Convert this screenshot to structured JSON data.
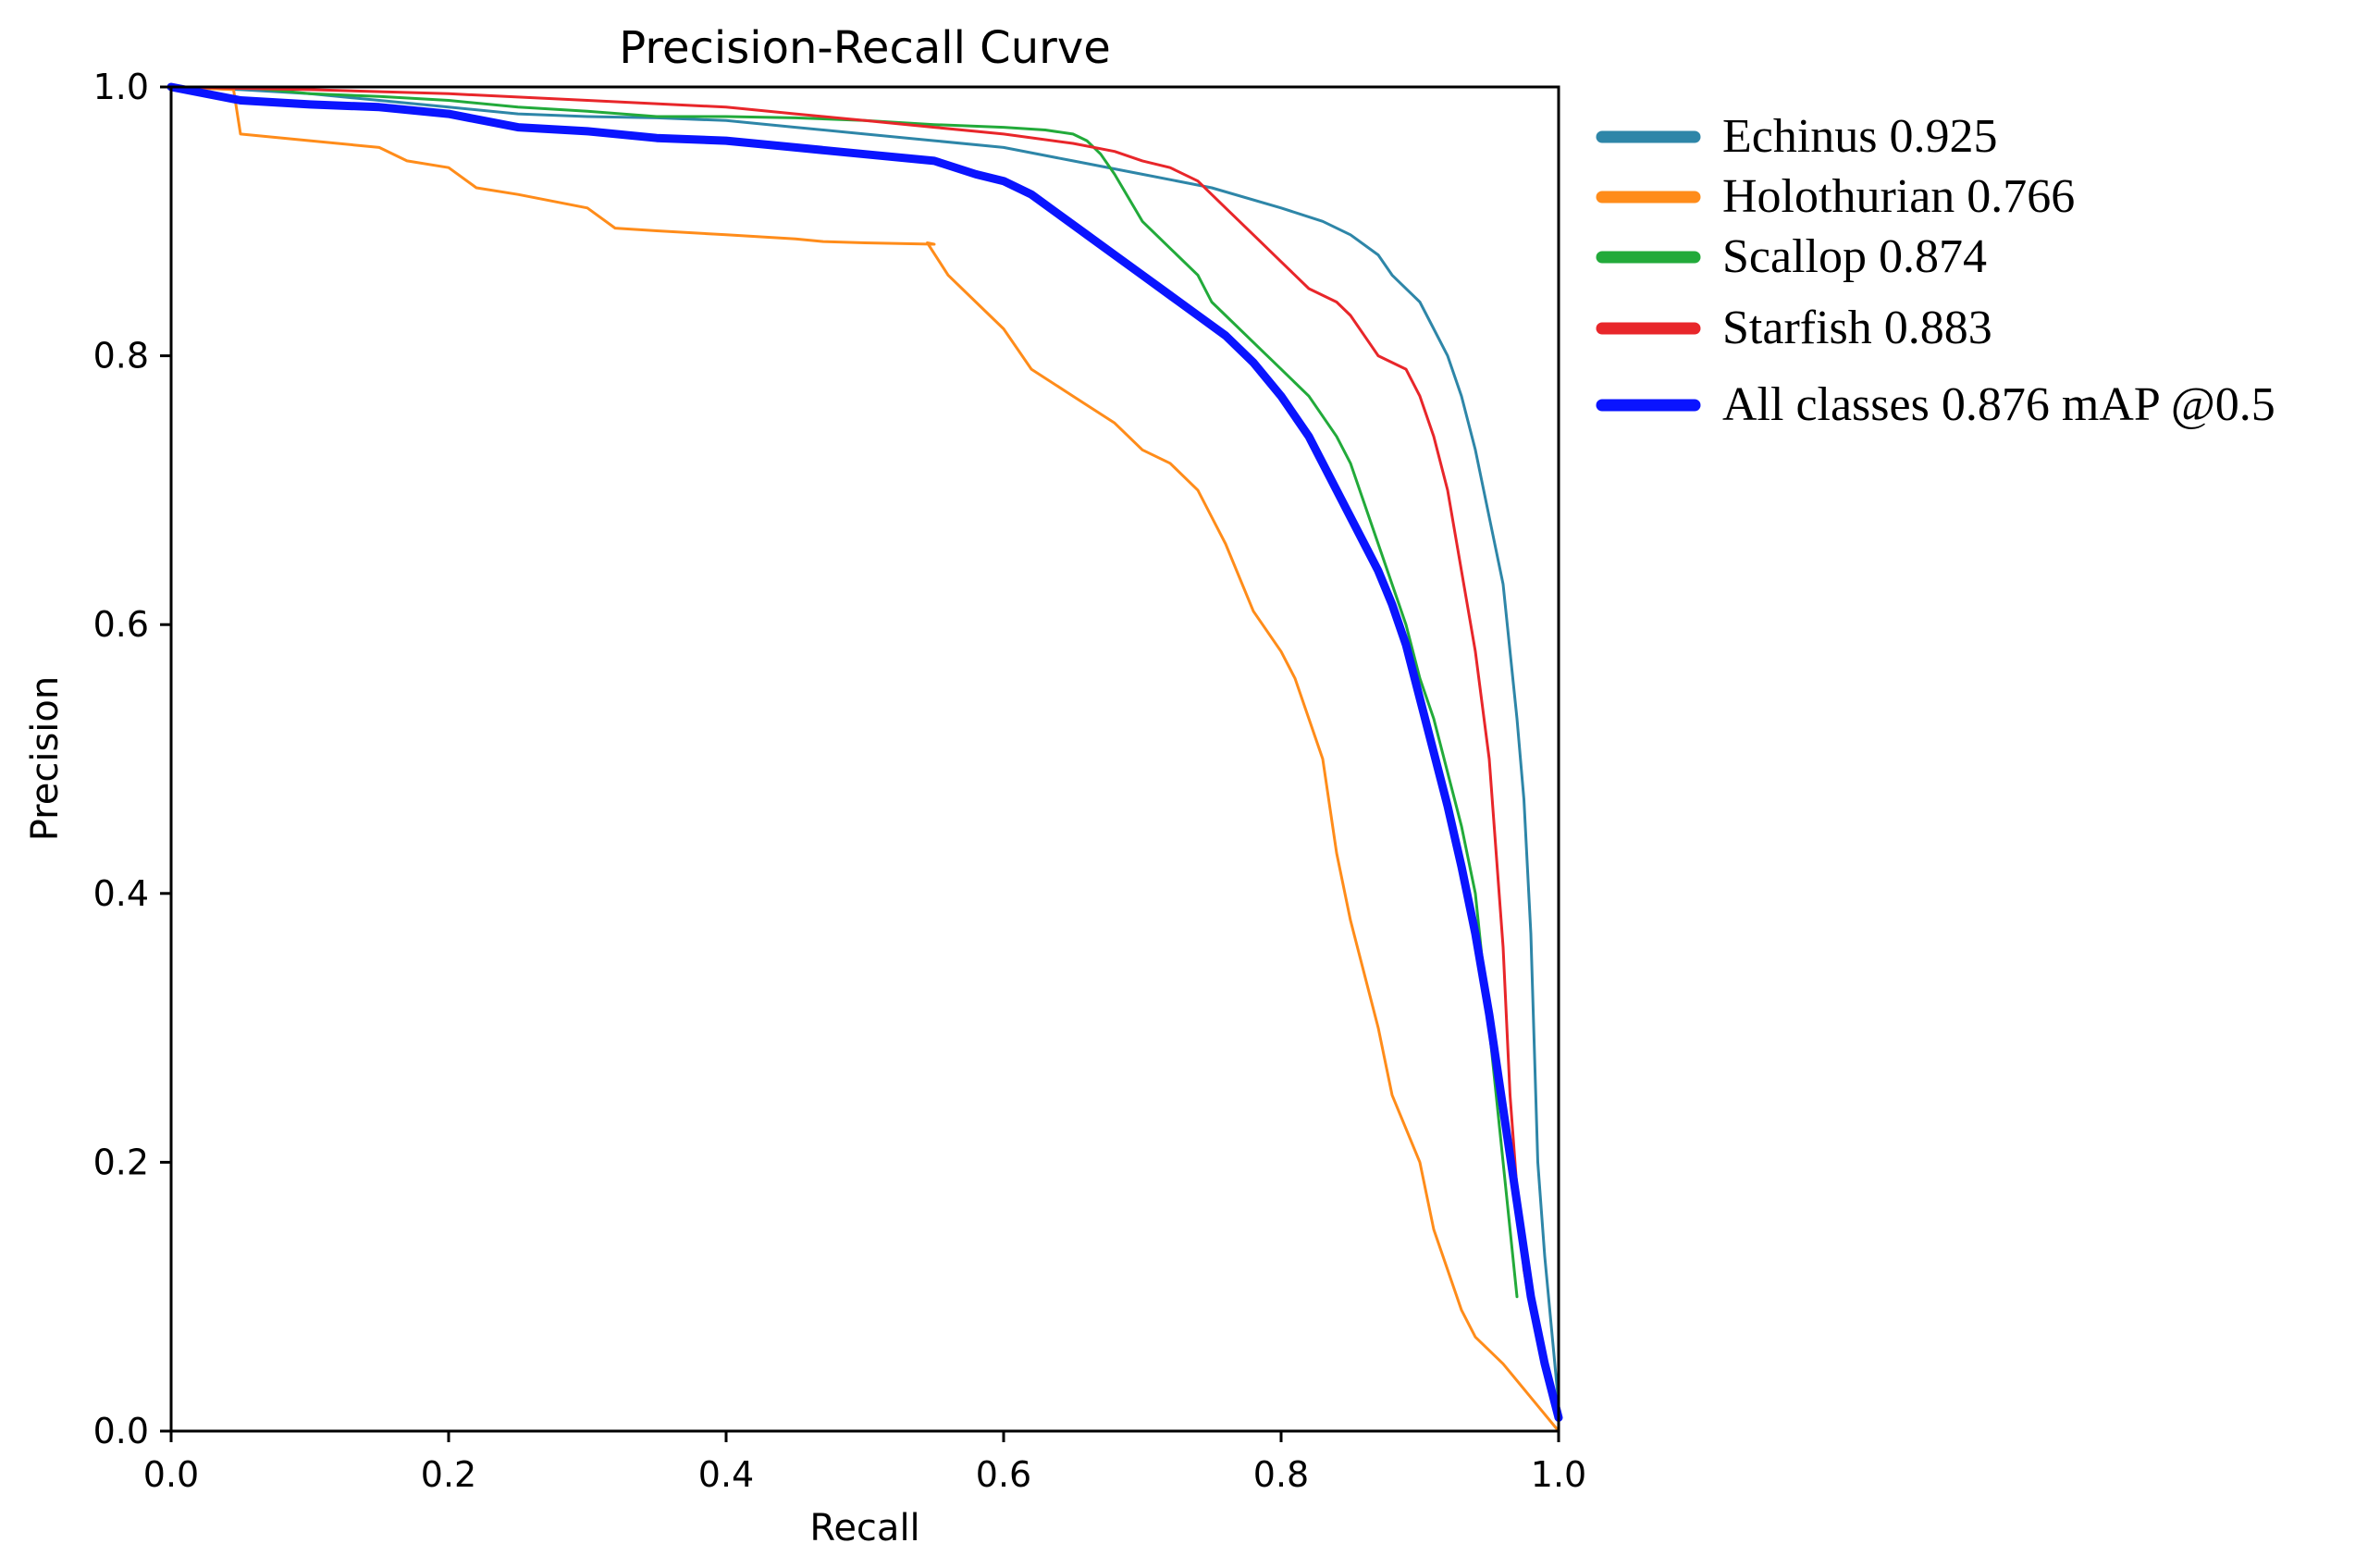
{
  "chart_data": {
    "type": "line",
    "title": "Precision-Recall Curve",
    "xlabel": "Recall",
    "ylabel": "Precision",
    "xlim": [
      0,
      1
    ],
    "ylim": [
      0,
      1
    ],
    "xticks": [
      "0.0",
      "0.2",
      "0.4",
      "0.6",
      "0.8",
      "1.0"
    ],
    "yticks": [
      "0.0",
      "0.2",
      "0.4",
      "0.6",
      "0.8",
      "1.0"
    ],
    "grid": false,
    "legend_position": "outside-right-top",
    "series": [
      {
        "name": "Echinus",
        "legend_label": "Echinus 0.925",
        "color": "#2e86a8",
        "emphasis": false,
        "x": [
          0,
          0.05,
          0.1,
          0.15,
          0.2,
          0.25,
          0.3,
          0.35,
          0.4,
          0.45,
          0.5,
          0.55,
          0.6,
          0.65,
          0.7,
          0.75,
          0.8,
          0.83,
          0.85,
          0.87,
          0.88,
          0.9,
          0.91,
          0.92,
          0.93,
          0.94,
          0.95,
          0.96,
          0.965,
          0.97,
          0.975,
          0.98,
          0.985,
          0.99,
          1.0
        ],
        "y": [
          1.0,
          0.998,
          0.995,
          0.99,
          0.985,
          0.98,
          0.978,
          0.977,
          0.975,
          0.97,
          0.965,
          0.96,
          0.955,
          0.945,
          0.935,
          0.925,
          0.91,
          0.9,
          0.89,
          0.875,
          0.86,
          0.84,
          0.82,
          0.8,
          0.77,
          0.73,
          0.68,
          0.63,
          0.58,
          0.53,
          0.47,
          0.37,
          0.2,
          0.13,
          0.02
        ]
      },
      {
        "name": "Holothurian",
        "legend_label": "Holothurian 0.766",
        "color": "#ff8c1a",
        "emphasis": false,
        "x": [
          0,
          0.045,
          0.05,
          0.1,
          0.15,
          0.17,
          0.2,
          0.22,
          0.25,
          0.3,
          0.32,
          0.35,
          0.4,
          0.45,
          0.47,
          0.5,
          0.55,
          0.545,
          0.56,
          0.58,
          0.6,
          0.62,
          0.65,
          0.68,
          0.7,
          0.72,
          0.74,
          0.75,
          0.76,
          0.78,
          0.8,
          0.81,
          0.82,
          0.83,
          0.84,
          0.85,
          0.86,
          0.87,
          0.88,
          0.9,
          0.91,
          0.92,
          0.93,
          0.94,
          0.96,
          1.0
        ],
        "y": [
          1.0,
          0.998,
          0.965,
          0.96,
          0.955,
          0.945,
          0.94,
          0.925,
          0.92,
          0.91,
          0.895,
          0.893,
          0.89,
          0.887,
          0.885,
          0.884,
          0.883,
          0.884,
          0.86,
          0.84,
          0.82,
          0.79,
          0.77,
          0.75,
          0.73,
          0.72,
          0.7,
          0.68,
          0.66,
          0.61,
          0.58,
          0.56,
          0.53,
          0.5,
          0.43,
          0.38,
          0.34,
          0.3,
          0.25,
          0.2,
          0.15,
          0.12,
          0.09,
          0.07,
          0.05,
          0.0
        ]
      },
      {
        "name": "Scallop",
        "legend_label": "Scallop 0.874",
        "color": "#22aa3a",
        "emphasis": false,
        "x": [
          0,
          0.05,
          0.1,
          0.15,
          0.2,
          0.25,
          0.3,
          0.35,
          0.4,
          0.45,
          0.5,
          0.55,
          0.6,
          0.63,
          0.65,
          0.66,
          0.67,
          0.68,
          0.7,
          0.72,
          0.74,
          0.75,
          0.76,
          0.78,
          0.79,
          0.8,
          0.82,
          0.84,
          0.85,
          0.86,
          0.87,
          0.88,
          0.89,
          0.9,
          0.91,
          0.92,
          0.93,
          0.94,
          0.95,
          0.96,
          0.97
        ],
        "y": [
          1.0,
          1.0,
          0.995,
          0.993,
          0.99,
          0.985,
          0.982,
          0.978,
          0.978,
          0.977,
          0.975,
          0.972,
          0.97,
          0.968,
          0.965,
          0.96,
          0.95,
          0.935,
          0.9,
          0.88,
          0.86,
          0.84,
          0.83,
          0.81,
          0.8,
          0.79,
          0.77,
          0.74,
          0.72,
          0.69,
          0.66,
          0.63,
          0.6,
          0.56,
          0.53,
          0.49,
          0.45,
          0.4,
          0.3,
          0.2,
          0.1
        ]
      },
      {
        "name": "Starfish",
        "legend_label": "Starfish 0.883",
        "color": "#e8262a",
        "emphasis": false,
        "x": [
          0,
          0.1,
          0.2,
          0.3,
          0.4,
          0.45,
          0.5,
          0.55,
          0.6,
          0.65,
          0.68,
          0.7,
          0.72,
          0.74,
          0.76,
          0.78,
          0.8,
          0.82,
          0.84,
          0.85,
          0.86,
          0.87,
          0.88,
          0.89,
          0.9,
          0.91,
          0.92,
          0.93,
          0.94,
          0.95,
          0.96,
          0.965,
          0.97,
          0.975,
          0.98
        ],
        "y": [
          1.0,
          0.998,
          0.995,
          0.99,
          0.985,
          0.98,
          0.975,
          0.97,
          0.965,
          0.958,
          0.952,
          0.945,
          0.94,
          0.93,
          0.91,
          0.89,
          0.87,
          0.85,
          0.84,
          0.83,
          0.815,
          0.8,
          0.795,
          0.79,
          0.77,
          0.74,
          0.7,
          0.64,
          0.58,
          0.5,
          0.36,
          0.25,
          0.18,
          0.12,
          0.09
        ]
      },
      {
        "name": "All classes",
        "legend_label": "All classes 0.876 mAP @0.5",
        "color": "#0a14ff",
        "emphasis": true,
        "x": [
          0,
          0.05,
          0.1,
          0.15,
          0.2,
          0.25,
          0.3,
          0.35,
          0.4,
          0.45,
          0.5,
          0.55,
          0.58,
          0.6,
          0.62,
          0.64,
          0.66,
          0.68,
          0.7,
          0.72,
          0.74,
          0.76,
          0.78,
          0.8,
          0.82,
          0.84,
          0.86,
          0.87,
          0.88,
          0.89,
          0.9,
          0.91,
          0.92,
          0.93,
          0.94,
          0.95,
          0.96,
          0.97,
          0.98,
          0.99,
          1.0
        ],
        "y": [
          1.0,
          0.99,
          0.987,
          0.985,
          0.98,
          0.97,
          0.967,
          0.962,
          0.96,
          0.955,
          0.95,
          0.945,
          0.935,
          0.93,
          0.92,
          0.905,
          0.89,
          0.875,
          0.86,
          0.845,
          0.83,
          0.815,
          0.795,
          0.77,
          0.74,
          0.7,
          0.66,
          0.64,
          0.615,
          0.585,
          0.545,
          0.505,
          0.465,
          0.42,
          0.37,
          0.31,
          0.24,
          0.17,
          0.1,
          0.05,
          0.01
        ]
      }
    ]
  }
}
